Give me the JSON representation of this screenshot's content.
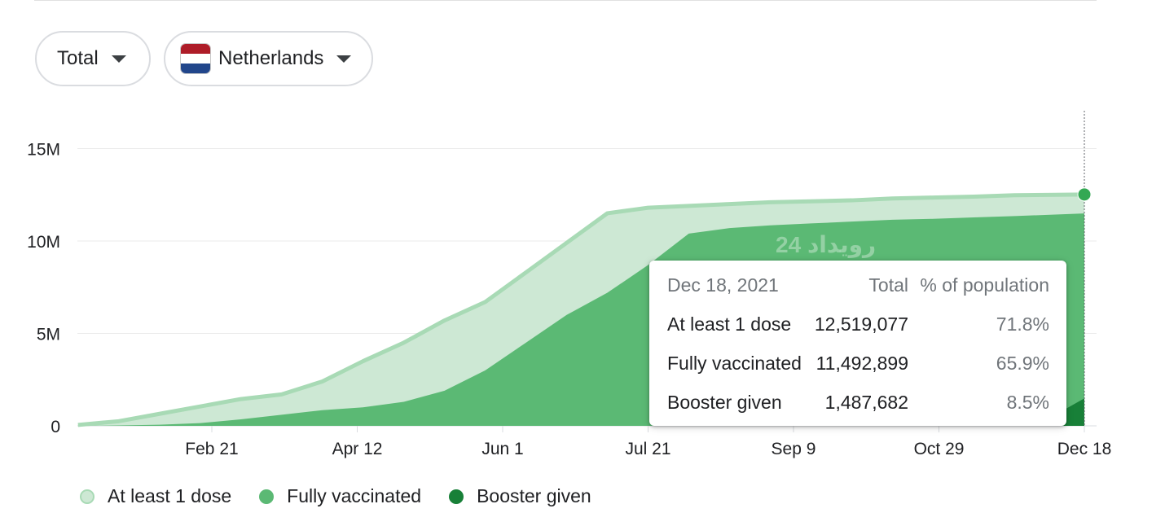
{
  "controls": {
    "metric": {
      "label": "Total"
    },
    "country": {
      "label": "Netherlands",
      "flag_colors": [
        "#ae1c28",
        "#ffffff",
        "#21468b"
      ]
    }
  },
  "colors": {
    "at_least_1_dose": "#cde8d4",
    "at_least_1_dose_line": "#a8dab5",
    "fully_vaccinated": "#5bb974",
    "booster_given": "#188038",
    "gridline": "#ebebeb",
    "highlight_dot": "#34a853"
  },
  "chart_data": {
    "type": "area",
    "x_tick_labels": [
      "Feb 21",
      "Apr 12",
      "Jun 1",
      "Jul 21",
      "Sep 9",
      "Oct 29",
      "Dec 18"
    ],
    "y_tick_labels": [
      "0",
      "5M",
      "10M",
      "15M"
    ],
    "ylim": [
      0,
      17000000
    ],
    "grid": true,
    "x": [
      "2021-01-06",
      "2021-01-20",
      "2021-02-03",
      "2021-02-17",
      "2021-03-03",
      "2021-03-17",
      "2021-03-31",
      "2021-04-14",
      "2021-04-28",
      "2021-05-12",
      "2021-05-26",
      "2021-06-09",
      "2021-06-23",
      "2021-07-07",
      "2021-07-21",
      "2021-08-04",
      "2021-08-18",
      "2021-09-01",
      "2021-09-15",
      "2021-09-29",
      "2021-10-13",
      "2021-10-27",
      "2021-11-10",
      "2021-11-24",
      "2021-12-08",
      "2021-12-18"
    ],
    "series": [
      {
        "name": "At least 1 dose",
        "values": [
          50000,
          250000,
          650000,
          1050000,
          1450000,
          1700000,
          2400000,
          3500000,
          4500000,
          5700000,
          6700000,
          8300000,
          9900000,
          11500000,
          11800000,
          11900000,
          12000000,
          12100000,
          12150000,
          12200000,
          12300000,
          12350000,
          12400000,
          12480000,
          12500000,
          12519077
        ]
      },
      {
        "name": "Fully vaccinated",
        "values": [
          0,
          20000,
          60000,
          150000,
          350000,
          600000,
          850000,
          1000000,
          1300000,
          1900000,
          3000000,
          4500000,
          6000000,
          7200000,
          8700000,
          10400000,
          10700000,
          10850000,
          10950000,
          11050000,
          11150000,
          11200000,
          11280000,
          11350000,
          11430000,
          11492899
        ]
      },
      {
        "name": "Booster given",
        "values": [
          0,
          0,
          0,
          0,
          0,
          0,
          0,
          0,
          0,
          0,
          0,
          0,
          0,
          0,
          0,
          0,
          0,
          0,
          0,
          0,
          0,
          0,
          0,
          100000,
          600000,
          1487682
        ]
      }
    ]
  },
  "tooltip": {
    "date": "Dec 18, 2021",
    "col_total": "Total",
    "col_percent": "% of population",
    "rows": [
      {
        "label": "At least 1 dose",
        "total": "12,519,077",
        "percent": "71.8%"
      },
      {
        "label": "Fully vaccinated",
        "total": "11,492,899",
        "percent": "65.9%"
      },
      {
        "label": "Booster given",
        "total": "1,487,682",
        "percent": "8.5%"
      }
    ]
  },
  "legend": [
    {
      "label": "At least 1 dose"
    },
    {
      "label": "Fully vaccinated"
    },
    {
      "label": "Booster given"
    }
  ]
}
